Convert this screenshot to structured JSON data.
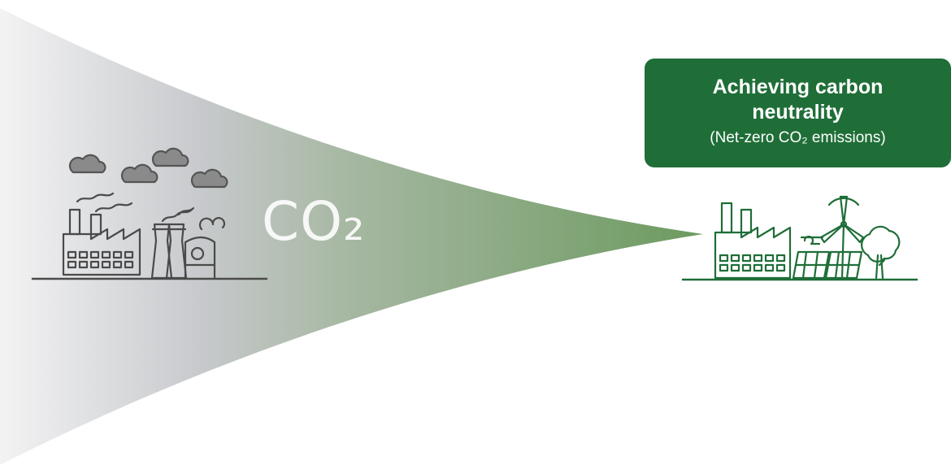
{
  "emission_label": "CO₂",
  "callout": {
    "title": "Achieving carbon neutrality",
    "subtitle": "(Net-zero CO₂ emissions)"
  },
  "colors": {
    "cone_start": "#c9c9cc",
    "cone_end": "#6f9a62",
    "callout_background": "#1f6e38",
    "polluting_line": "#4a4a4a",
    "clean_line": "#1f6e38"
  },
  "icons": {
    "left_scene": [
      "cloud-icon",
      "factory-icon",
      "cooling-tower-icon",
      "smoke-icon"
    ],
    "right_scene": [
      "factory-icon",
      "solar-panel-icon",
      "wind-turbine-icon",
      "tree-icon",
      "wind-icon"
    ]
  }
}
